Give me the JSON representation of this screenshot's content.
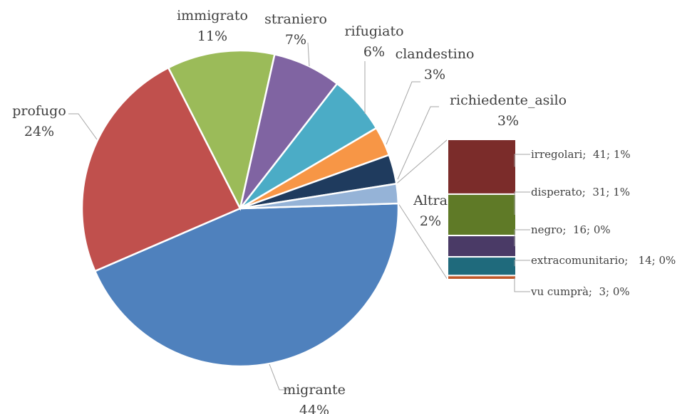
{
  "chart_data": {
    "type": "bar-of-pie",
    "pie": [
      {
        "name": "migrante",
        "label": "44%",
        "value": 44,
        "color": "#4f81bd"
      },
      {
        "name": "profugo",
        "label": "24%",
        "value": 24,
        "color": "#c0504d"
      },
      {
        "name": "immigrato",
        "label": "11%",
        "value": 11,
        "color": "#9bbb59"
      },
      {
        "name": "straniero",
        "label": "7%",
        "value": 7,
        "color": "#8064a2"
      },
      {
        "name": "rifugiato",
        "label": "6%",
        "value": 6,
        "color": "#4bacc6"
      },
      {
        "name": "clandestino",
        "label": "3%",
        "value": 3,
        "color": "#f79646"
      },
      {
        "name": "richiedente_asilo",
        "label": "3%",
        "value": 3,
        "color": "#1f3b5e"
      },
      {
        "name": "Altra",
        "label": "2%",
        "value": 2,
        "color": "#95b3d7"
      }
    ],
    "bar": [
      {
        "label": "irregolari;  41; 1%",
        "value": 41,
        "color": "#7b2c2a"
      },
      {
        "label": "disperato;  31; 1%",
        "value": 31,
        "color": "#5f7a27"
      },
      {
        "label": "negro;  16; 0%",
        "value": 16,
        "color": "#4a3a66"
      },
      {
        "label": "extracomunitario;   14; 0%",
        "value": 14,
        "color": "#1f6a7c"
      },
      {
        "label": "vu cumprà;  3; 0%",
        "value": 3,
        "color": "#c0582a"
      }
    ]
  }
}
